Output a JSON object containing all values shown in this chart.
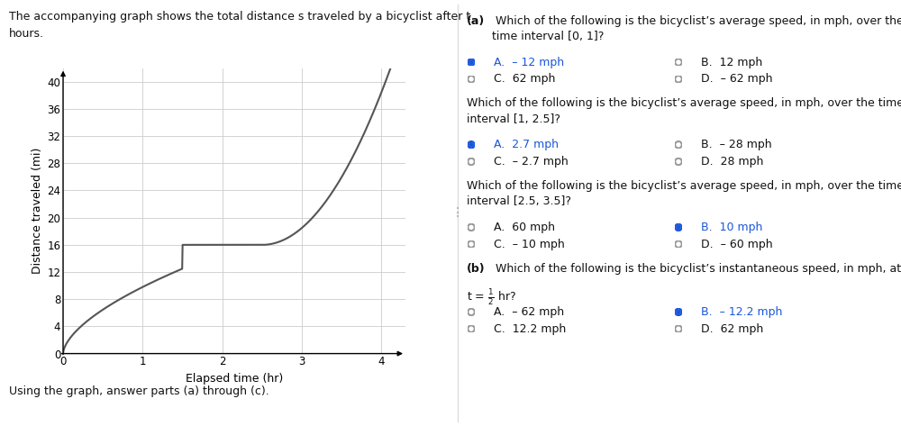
{
  "left_panel_text_line1": "The accompanying graph shows the total distance s traveled by a bicyclist after t",
  "left_panel_text_line2": "hours.",
  "below_graph_text": "Using the graph, answer parts (a) through (c).",
  "graph_xlabel": "Elapsed time (hr)",
  "graph_ylabel": "Distance traveled (mi)",
  "xlim": [
    0,
    4.3
  ],
  "ylim": [
    0,
    42
  ],
  "xticks": [
    0,
    1,
    2,
    3,
    4
  ],
  "yticks": [
    0,
    4,
    8,
    12,
    16,
    20,
    24,
    28,
    32,
    36,
    40
  ],
  "curve_color": "#555555",
  "grid_color": "#cccccc",
  "bg_color": "#ffffff",
  "divider_x": 0.508,
  "right_start_x": 0.518,
  "selected_color": "#1a56db",
  "unselected_color": "#999999",
  "text_color": "#111111",
  "option_label_color": "#1a56db",
  "questions": [
    {
      "title_bold": "(a)",
      "title_rest": " Which of the following is the bicyclist’s average speed, in mph, over the\ntime interval [0, 1]?",
      "bold_prefix": true,
      "options": [
        {
          "label": "A.",
          "text": "– 12 mph",
          "selected": true,
          "col": 0
        },
        {
          "label": "B.",
          "text": "12 mph",
          "selected": false,
          "col": 1
        },
        {
          "label": "C.",
          "text": "62 mph",
          "selected": false,
          "col": 0
        },
        {
          "label": "D.",
          "text": "– 62 mph",
          "selected": false,
          "col": 1
        }
      ]
    },
    {
      "title_bold": "",
      "title_rest": "Which of the following is the bicyclist’s average speed, in mph, over the time\ninterval [1, 2.5]?",
      "bold_prefix": false,
      "options": [
        {
          "label": "A.",
          "text": "2.7 mph",
          "selected": true,
          "col": 0
        },
        {
          "label": "B.",
          "text": "– 28 mph",
          "selected": false,
          "col": 1
        },
        {
          "label": "C.",
          "text": "– 2.7 mph",
          "selected": false,
          "col": 0
        },
        {
          "label": "D.",
          "text": "28 mph",
          "selected": false,
          "col": 1
        }
      ]
    },
    {
      "title_bold": "",
      "title_rest": "Which of the following is the bicyclist’s average speed, in mph, over the time\ninterval [2.5, 3.5]?",
      "bold_prefix": false,
      "options": [
        {
          "label": "A.",
          "text": "60 mph",
          "selected": false,
          "col": 0
        },
        {
          "label": "B.",
          "text": "10 mph",
          "selected": true,
          "col": 1
        },
        {
          "label": "C.",
          "text": "– 10 mph",
          "selected": false,
          "col": 0
        },
        {
          "label": "D.",
          "text": "– 60 mph",
          "selected": false,
          "col": 1
        }
      ]
    },
    {
      "title_bold": "(b)",
      "title_rest": " Which of the following is the bicyclist’s instantaneous speed, in mph, at",
      "title_line2": "t = ½ hr?",
      "bold_prefix": true,
      "options": [
        {
          "label": "A.",
          "text": "– 62 mph",
          "selected": false,
          "col": 0
        },
        {
          "label": "B.",
          "text": "– 12.2 mph",
          "selected": true,
          "col": 1
        },
        {
          "label": "C.",
          "text": "12.2 mph",
          "selected": false,
          "col": 0
        },
        {
          "label": "D.",
          "text": "62 mph",
          "selected": false,
          "col": 1
        }
      ]
    }
  ]
}
